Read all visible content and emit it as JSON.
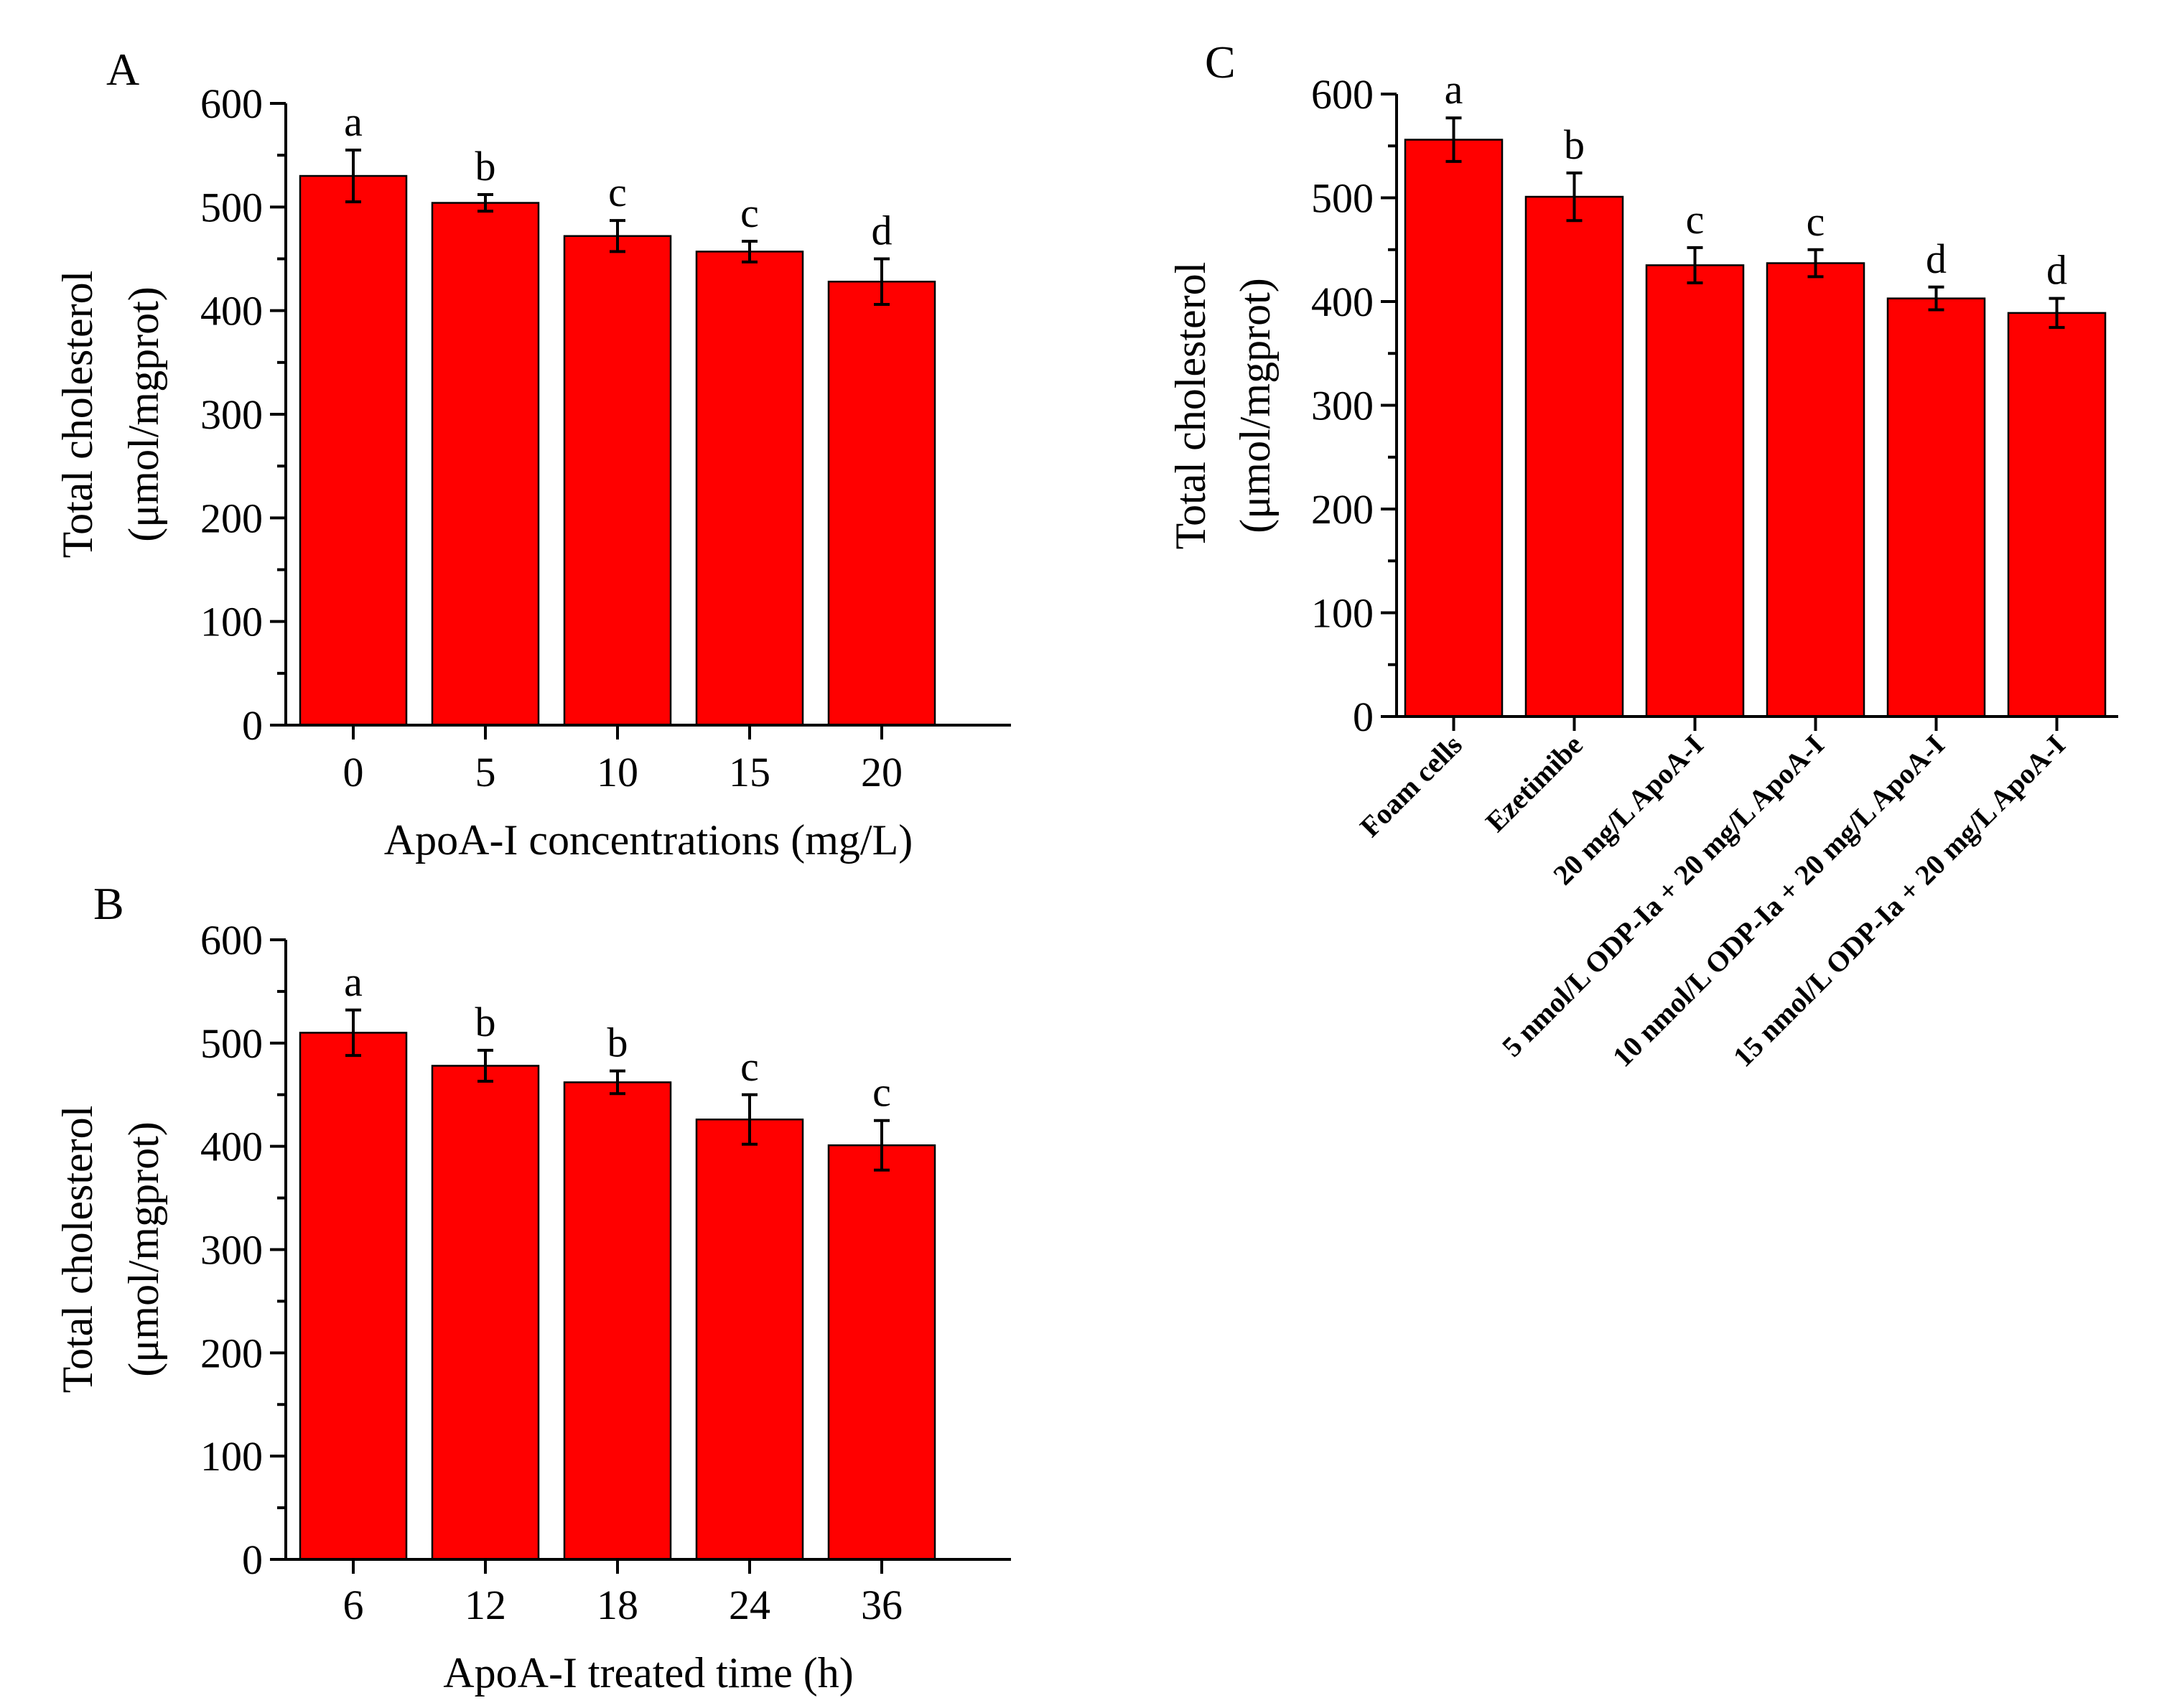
{
  "chart_data": [
    {
      "id": "A",
      "type": "bar",
      "panel_label": "A",
      "categories": [
        "0",
        "5",
        "10",
        "15",
        "20"
      ],
      "values": [
        530,
        504,
        472,
        457,
        428
      ],
      "errors": [
        25,
        8,
        15,
        10,
        22
      ],
      "significance": [
        "a",
        "b",
        "c",
        "c",
        "d"
      ],
      "ylabel_line1": "Total cholesterol",
      "ylabel_line2": "(μmol/mgprot)",
      "xlabel": "ApoA-I concentrations (mg/L)",
      "ylim": [
        0,
        600
      ],
      "yticks": [
        "0",
        "100",
        "200",
        "300",
        "400",
        "500",
        "600"
      ],
      "bar_color": "#ff0000",
      "grid": false
    },
    {
      "id": "B",
      "type": "bar",
      "panel_label": "B",
      "categories": [
        "6",
        "12",
        "18",
        "24",
        "36"
      ],
      "values": [
        510,
        478,
        462,
        426,
        401
      ],
      "errors": [
        22,
        15,
        11,
        24,
        24
      ],
      "significance": [
        "a",
        "b",
        "b",
        "c",
        "c"
      ],
      "ylabel_line1": "Total cholesterol",
      "ylabel_line2": "(μmol/mgprot)",
      "xlabel": "ApoA-I treated time (h)",
      "ylim": [
        0,
        600
      ],
      "yticks": [
        "0",
        "100",
        "200",
        "300",
        "400",
        "500",
        "600"
      ],
      "bar_color": "#ff0000",
      "grid": false
    },
    {
      "id": "C",
      "type": "bar",
      "panel_label": "C",
      "categories": [
        "Foam cells",
        "Ezetimibe",
        "20 mg/L ApoA-I",
        "5 nmol/L ODP-Ia + 20 mg/L ApoA-I",
        "10 nmol/L ODP-Ia + 20 mg/L ApoA-I",
        "15 nmol/L ODP-Ia + 20 mg/L ApoA-I"
      ],
      "values": [
        556,
        501,
        435,
        437,
        403,
        389
      ],
      "errors": [
        21,
        23,
        17,
        13,
        11,
        14
      ],
      "significance": [
        "a",
        "b",
        "c",
        "c",
        "d",
        "d"
      ],
      "ylabel_line1": "Total cholesterol",
      "ylabel_line2": "(μmol/mgprot)",
      "xlabel": "",
      "ylim": [
        0,
        600
      ],
      "yticks": [
        "0",
        "100",
        "200",
        "300",
        "400",
        "500",
        "600"
      ],
      "bar_color": "#ff0000",
      "grid": false
    }
  ]
}
